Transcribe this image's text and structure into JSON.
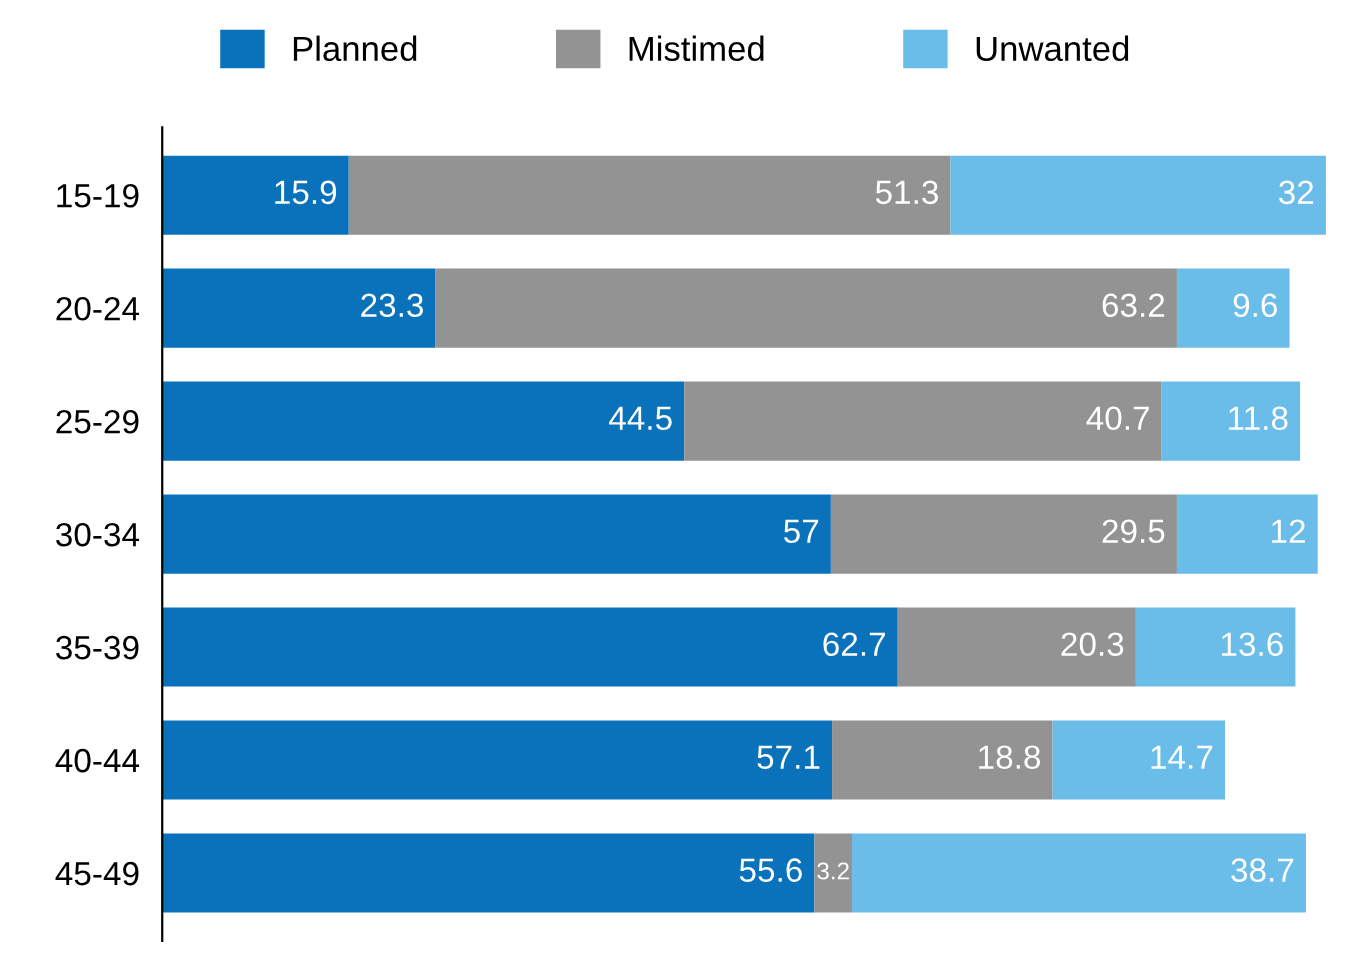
{
  "chart_data": {
    "type": "bar",
    "orientation": "horizontal",
    "stacked": true,
    "data_labels": true,
    "legend": "top",
    "grid": false,
    "categories": [
      "15-19",
      "20-24",
      "25-29",
      "30-34",
      "35-39",
      "40-44",
      "45-49"
    ],
    "series": [
      {
        "name": "Planned",
        "color": "#0a72ba",
        "values": [
          15.9,
          23.3,
          44.5,
          57,
          62.7,
          57.1,
          55.6
        ]
      },
      {
        "name": "Mistimed",
        "color": "#939393",
        "values": [
          51.3,
          63.2,
          40.7,
          29.5,
          20.3,
          18.8,
          3.2
        ]
      },
      {
        "name": "Unwanted",
        "color": "#6bbde9",
        "values": [
          32,
          9.6,
          11.8,
          12,
          13.6,
          14.7,
          38.7
        ]
      }
    ]
  }
}
